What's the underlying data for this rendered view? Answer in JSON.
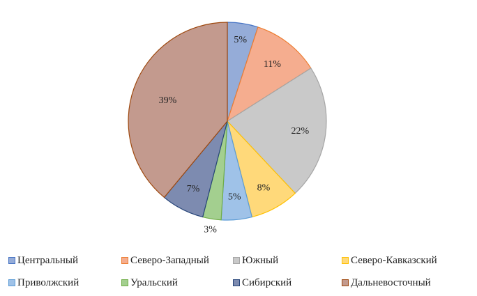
{
  "chart_data": {
    "type": "pie",
    "categories": [
      "Центральный",
      "Северо-Западный",
      "Южный",
      "Северо-Кавказский",
      "Приволжский",
      "Уральский",
      "Сибирский",
      "Дальневосточный"
    ],
    "values": [
      5,
      11,
      22,
      8,
      5,
      3,
      7,
      39
    ],
    "labels": [
      "5%",
      "11%",
      "22%",
      "8%",
      "5%",
      "3%",
      "7%",
      "39%"
    ],
    "colors": [
      "#95acd8",
      "#f5ad8f",
      "#c9c9c9",
      "#ffd97a",
      "#9fc2e8",
      "#a3cf8f",
      "#7d8bb0",
      "#c39a8e"
    ],
    "stroke_colors": [
      "#4472c4",
      "#ed7d31",
      "#a5a5a5",
      "#ffc000",
      "#5b9bd5",
      "#70ad47",
      "#264478",
      "#9e480e"
    ],
    "start_angle": "12 o'clock",
    "direction": "clockwise",
    "legend_position": "bottom"
  }
}
